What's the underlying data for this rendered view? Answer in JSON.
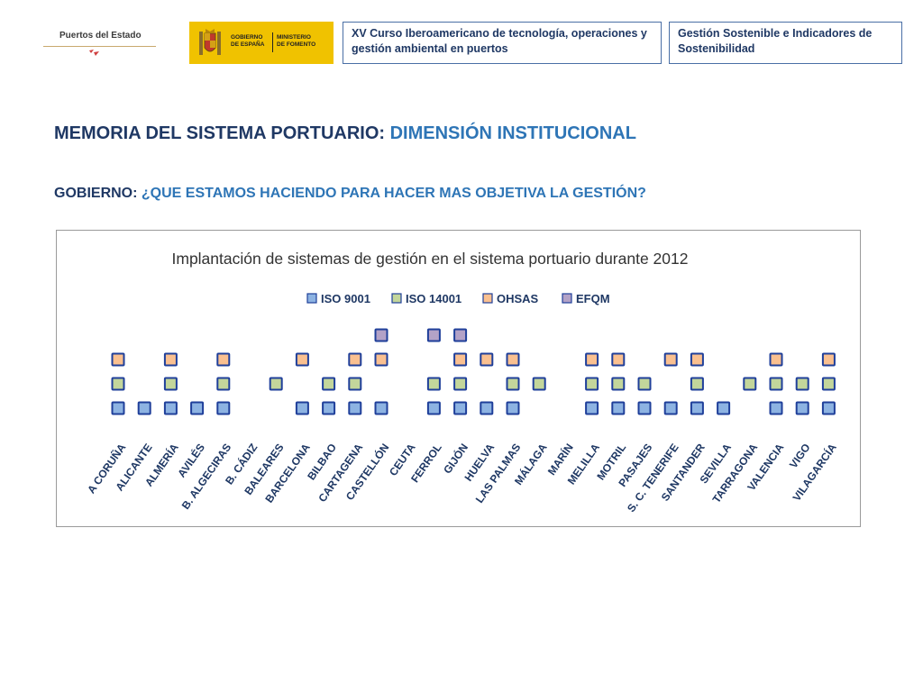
{
  "header": {
    "logo_puertos_text": "Puertos del Estado",
    "logo_gobierno_text": "GOBIERNO\nDE ESPAÑA",
    "logo_ministerio_text": "MINISTERIO\nDE FOMENTO",
    "course_box": "XV Curso Iberoamericano de tecnología, operaciones y gestión ambiental en puertos",
    "topic_box": "Gestión Sostenible e Indicadores de Sostenibilidad"
  },
  "title": {
    "part1": "MEMORIA DEL SISTEMA PORTUARIO: ",
    "part2": "DIMENSIÓN INSTITUCIONAL"
  },
  "subtitle": {
    "part1": "GOBIERNO: ",
    "part2": "¿QUE ESTAMOS HACIENDO PARA HACER MAS OBJETIVA LA GESTIÓN?"
  },
  "colors": {
    "dark_text": "#1f3864",
    "accent_text": "#2e75b6"
  },
  "chart_data": {
    "type": "scatter",
    "title": "Implantación de sistemas de gestión en el sistema portuario  durante 2012",
    "legend_position": "top",
    "categories": [
      "A CORUÑA",
      "ALICANTE",
      "ALMERÍA",
      "AVILÉS",
      "B. ALGECIRAS",
      "B. CÁDIZ",
      "BALEARES",
      "BARCELONA",
      "BILBAO",
      "CARTAGENA",
      "CASTELLÓN",
      "CEUTA",
      "FERROL",
      "GIJÓN",
      "HUELVA",
      "LAS PALMAS",
      "MÁLAGA",
      "MARÍN",
      "MELILLA",
      "MOTRIL",
      "PASAJES",
      "S. C. TENERIFE",
      "SANTANDER",
      "SEVILLA",
      "TARRAGONA",
      "VALENCIA",
      "VIGO",
      "VILAGARCÍA"
    ],
    "series": [
      {
        "name": "ISO 9001",
        "fill": "#8db3e2",
        "stroke": "#1f3f9a",
        "values": [
          1,
          1,
          1,
          1,
          1,
          0,
          0,
          1,
          1,
          1,
          1,
          0,
          1,
          1,
          1,
          1,
          0,
          0,
          1,
          1,
          1,
          1,
          1,
          1,
          0,
          1,
          1,
          1
        ]
      },
      {
        "name": "ISO 14001",
        "fill": "#c3d69b",
        "stroke": "#1f3f9a",
        "values": [
          1,
          0,
          1,
          0,
          1,
          0,
          1,
          0,
          1,
          1,
          0,
          0,
          1,
          1,
          0,
          1,
          1,
          0,
          1,
          1,
          1,
          0,
          1,
          0,
          1,
          1,
          1,
          1
        ]
      },
      {
        "name": "OHSAS",
        "fill": "#fac090",
        "stroke": "#1f3f9a",
        "values": [
          1,
          0,
          1,
          0,
          1,
          0,
          0,
          1,
          0,
          1,
          1,
          0,
          0,
          1,
          1,
          1,
          0,
          0,
          1,
          1,
          0,
          1,
          1,
          0,
          0,
          1,
          0,
          1
        ]
      },
      {
        "name": "EFQM",
        "fill": "#b3a2c7",
        "stroke": "#1f3f9a",
        "values": [
          0,
          0,
          0,
          0,
          0,
          0,
          0,
          0,
          0,
          0,
          1,
          0,
          1,
          1,
          0,
          0,
          0,
          0,
          0,
          0,
          0,
          0,
          0,
          0,
          0,
          0,
          0,
          0
        ]
      }
    ]
  }
}
